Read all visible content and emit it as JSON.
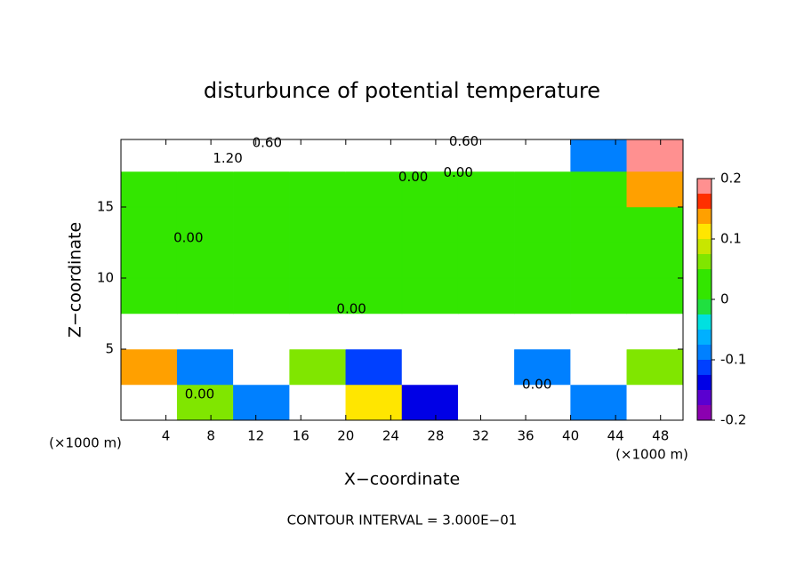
{
  "chart_data": {
    "type": "heatmap",
    "title": "disturbunce of potential temperature",
    "x_label": "X−coordinate",
    "y_label": "Z−coordinate",
    "x_unit": "(×1000 m)",
    "x_unit_right": "(×1000 m)",
    "footnote": "CONTOUR INTERVAL = 3.000E−01",
    "xlim": [
      0,
      50
    ],
    "ylim": [
      0,
      19.75
    ],
    "xticks": [
      4,
      8,
      12,
      16,
      20,
      24,
      28,
      32,
      36,
      40,
      44,
      48
    ],
    "yticks": [
      5,
      10,
      15
    ],
    "x": [
      2.5,
      7.5,
      12.5,
      17.5,
      22.5,
      27.5,
      32.5,
      37.5,
      42.5,
      47.5
    ],
    "y": [
      1.25,
      3.75,
      6.25,
      8.75,
      11.25,
      13.75,
      16.25,
      18.75
    ],
    "z": [
      [
        -0.3,
        0.05,
        -0.1,
        -0.3,
        0.1,
        -0.15,
        -0.3,
        0.3,
        -0.1,
        -0.3
      ],
      [
        0.15,
        -0.1,
        -0.3,
        0.05,
        -0.12,
        0.3,
        -0.3,
        -0.1,
        -0.3,
        0.05
      ],
      [
        -0.3,
        -0.3,
        -0.3,
        -0.3,
        -0.3,
        -0.3,
        -0.3,
        -0.3,
        -0.3,
        -0.3
      ],
      [
        0.02,
        0.02,
        0.02,
        0.02,
        0.02,
        0.02,
        0.02,
        0.02,
        0.02,
        0.02
      ],
      [
        0.02,
        0.02,
        0.02,
        0.02,
        0.02,
        0.02,
        0.02,
        0.02,
        0.02,
        0.02
      ],
      [
        0.02,
        0.02,
        0.02,
        0.02,
        0.02,
        0.02,
        0.02,
        0.02,
        0.02,
        0.02
      ],
      [
        0.01,
        0.02,
        0.02,
        0.02,
        0.02,
        0.02,
        0.02,
        0.01,
        0.02,
        0.15
      ],
      [
        0.5,
        0.8,
        0.6,
        0.3,
        -0.5,
        -0.4,
        -0.5,
        -0.3,
        -0.1,
        0.2
      ]
    ],
    "zlim": [
      -0.2,
      0.2
    ],
    "zticks": [
      -0.2,
      -0.1,
      0,
      0.1,
      0.2
    ],
    "colormap": [
      "#8b00b0",
      "#5a00d0",
      "#0000e6",
      "#0040ff",
      "#0080ff",
      "#00b0ff",
      "#00e0e0",
      "#20e040",
      "#33e600",
      "#33e600",
      "#80e600",
      "#c8e600",
      "#ffe600",
      "#ffa000",
      "#ff3000",
      "#ff9090"
    ],
    "contour_labels": [
      {
        "text": "0.60",
        "x": 13,
        "y": 19.5
      },
      {
        "text": "1.20",
        "x": 9.5,
        "y": 18.4
      },
      {
        "text": "0.60",
        "x": 30.5,
        "y": 19.6
      },
      {
        "text": "0.00",
        "x": 26,
        "y": 17.1
      },
      {
        "text": "0.00",
        "x": 30,
        "y": 17.4
      },
      {
        "text": "0.00",
        "x": 6,
        "y": 12.8
      },
      {
        "text": "0.00",
        "x": 20.5,
        "y": 7.8
      },
      {
        "text": "0.00",
        "x": 7,
        "y": 1.8
      },
      {
        "text": "0.00",
        "x": 37,
        "y": 2.5
      }
    ]
  }
}
